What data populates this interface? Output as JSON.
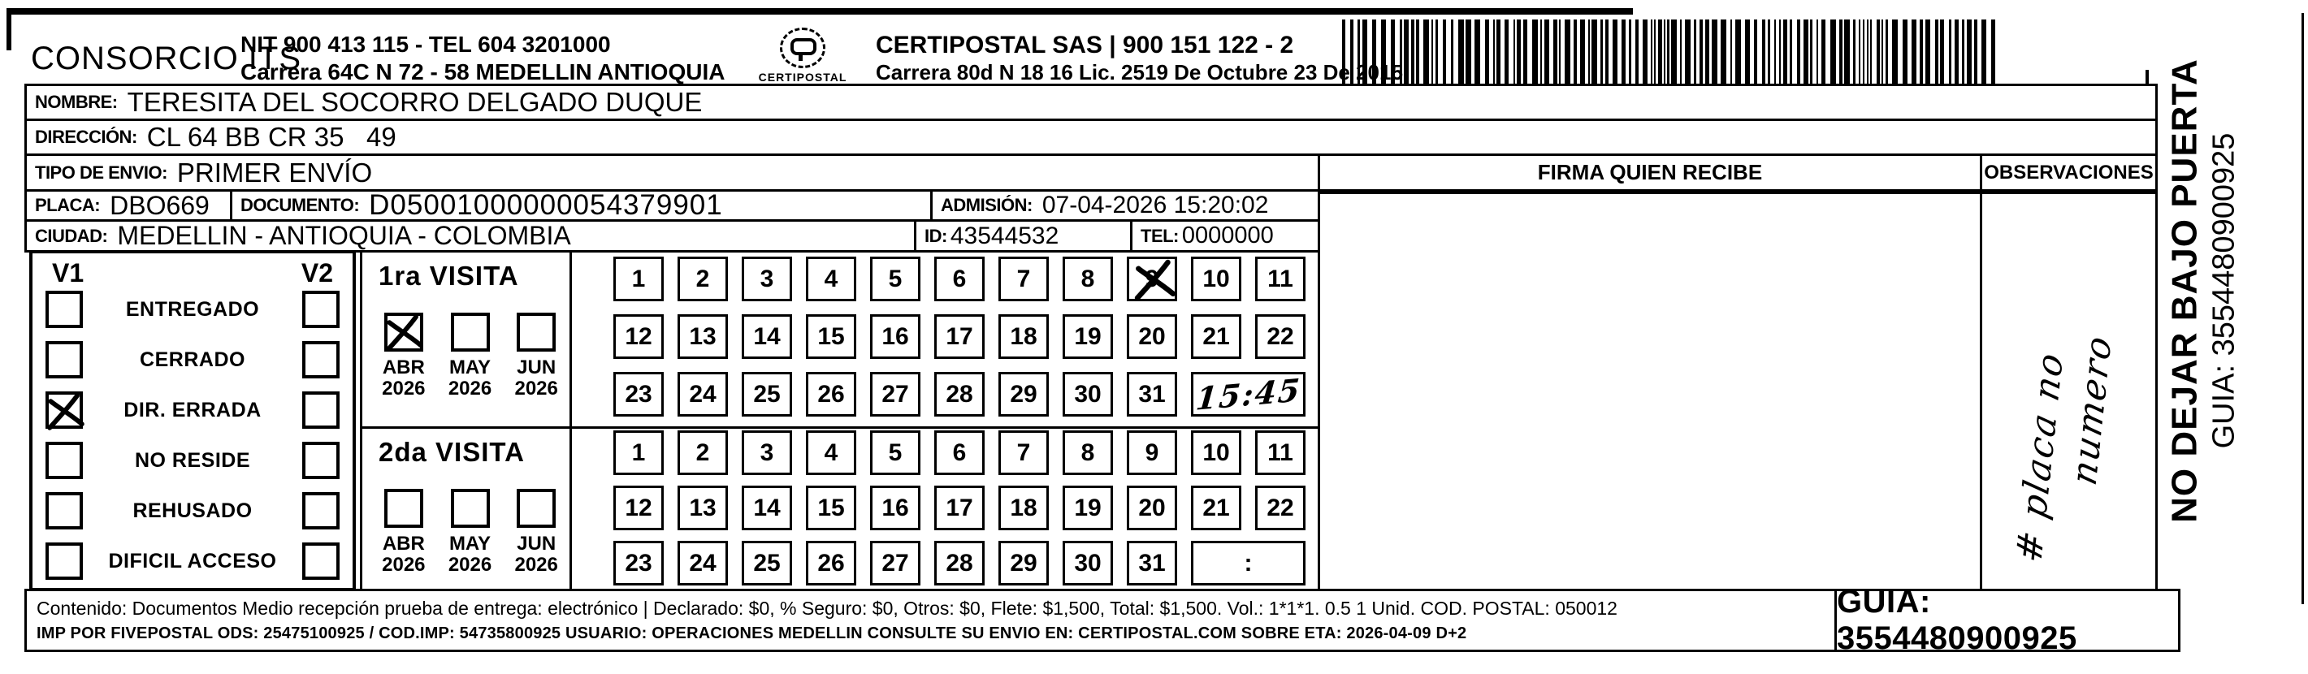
{
  "header": {
    "company": "CONSORCIO ITS",
    "nit_line1": "NIT 900 413 115 - TEL 604 3201000",
    "nit_line2": "Carrera 64C N 72 - 58 MEDELLIN ANTIOQUIA",
    "logo_name": "CERTIPOSTAL",
    "certipostal_line1": "CERTIPOSTAL SAS | 900 151 122 - 2",
    "certipostal_line2": "Carrera 80d N 18 16  Lic. 2519 De Octubre 23 De 2015"
  },
  "fields": {
    "nombre": {
      "label": "NOMBRE:",
      "value": "TERESITA DEL SOCORRO DELGADO DUQUE"
    },
    "direccion": {
      "label": "DIRECCIÓN:",
      "value": "CL 64 BB CR 35   49"
    },
    "tipo_envio": {
      "label": "TIPO DE ENVIO:",
      "value": "PRIMER ENVÍO"
    },
    "placa": {
      "label": "PLACA:",
      "value": "DBO669"
    },
    "documento": {
      "label": "DOCUMENTO:",
      "value": "D05001000000054379901"
    },
    "admision": {
      "label": "ADMISIÓN:",
      "value": "07-04-2026 15:20:02"
    },
    "ciudad": {
      "label": "CIUDAD:",
      "value": "MEDELLIN - ANTIOQUIA - COLOMBIA"
    },
    "id": {
      "label": "ID:",
      "value": "43544532"
    },
    "tel": {
      "label": "TEL:",
      "value": "0000000"
    }
  },
  "status_panel": {
    "v1_label": "V1",
    "v2_label": "V2",
    "rows": [
      {
        "label": "ENTREGADO",
        "v1_checked": false,
        "v2_checked": false
      },
      {
        "label": "CERRADO",
        "v1_checked": false,
        "v2_checked": false
      },
      {
        "label": "DIR. ERRADA",
        "v1_checked": true,
        "v2_checked": false
      },
      {
        "label": "NO RESIDE",
        "v1_checked": false,
        "v2_checked": false
      },
      {
        "label": "REHUSADO",
        "v1_checked": false,
        "v2_checked": false
      },
      {
        "label": "DIFICIL ACCESO",
        "v1_checked": false,
        "v2_checked": false
      }
    ]
  },
  "visits": {
    "first": {
      "title": "1ra VISITA",
      "months": [
        {
          "name": "ABR",
          "year": "2026",
          "checked": true
        },
        {
          "name": "MAY",
          "year": "2026",
          "checked": false
        },
        {
          "name": "JUN",
          "year": "2026",
          "checked": false
        }
      ],
      "days": [
        1,
        2,
        3,
        4,
        5,
        6,
        7,
        8,
        9,
        10,
        11,
        12,
        13,
        14,
        15,
        16,
        17,
        18,
        19,
        20,
        21,
        22,
        23,
        24,
        25,
        26,
        27,
        28,
        29,
        30,
        31
      ],
      "crossed_day": 9,
      "time_note": "15:45",
      "time_note_handwritten": true
    },
    "second": {
      "title": "2da VISITA",
      "months": [
        {
          "name": "ABR",
          "year": "2026",
          "checked": false
        },
        {
          "name": "MAY",
          "year": "2026",
          "checked": false
        },
        {
          "name": "JUN",
          "year": "2026",
          "checked": false
        }
      ],
      "days": [
        1,
        2,
        3,
        4,
        5,
        6,
        7,
        8,
        9,
        10,
        11,
        12,
        13,
        14,
        15,
        16,
        17,
        18,
        19,
        20,
        21,
        22,
        23,
        24,
        25,
        26,
        27,
        28,
        29,
        30,
        31
      ],
      "crossed_day": null,
      "time_note": ":",
      "time_note_handwritten": false
    }
  },
  "columns": {
    "firma_header": "FIRMA QUIEN RECIBE",
    "observaciones_header": "OBSERVACIONES"
  },
  "observaciones_note": {
    "line1": "# placa no",
    "line2": "numero"
  },
  "side_note": {
    "line1": "NO DEJAR BAJO PUERTA",
    "line2": "GUIA: 3554480900925"
  },
  "footer": {
    "line1": "Contenido: Documentos Medio recepción prueba de entrega: electrónico | Declarado: $0, % Seguro: $0, Otros: $0, Flete: $1,500, Total: $1,500. Vol.: 1*1*1. 0.5 1 Unid. COD. POSTAL: 050012",
    "line2": "IMP POR FIVEPOSTAL ODS: 25475100925 / COD.IMP: 54735800925 USUARIO: OPERACIONES MEDELLIN CONSULTE SU ENVIO EN: CERTIPOSTAL.COM SOBRE ETA: 2026-04-09 D+2",
    "guia": "GUIA: 3554480900925"
  },
  "barcode_value": "3554480900925"
}
